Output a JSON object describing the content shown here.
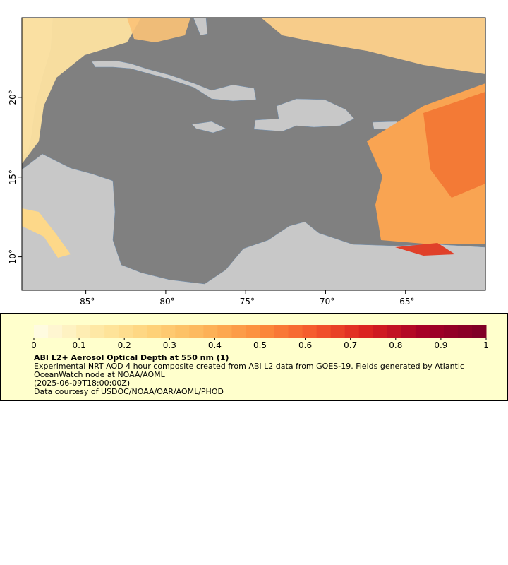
{
  "map": {
    "xlim": [
      -89,
      -60
    ],
    "ylim": [
      7.9,
      25
    ],
    "xticks": [
      {
        "value": -85,
        "label": "-85°"
      },
      {
        "value": -80,
        "label": "-80°"
      },
      {
        "value": -75,
        "label": "-75°"
      },
      {
        "value": -70,
        "label": "-70°"
      },
      {
        "value": -65,
        "label": "-65°"
      }
    ],
    "yticks": [
      {
        "value": 10,
        "label": "10°"
      },
      {
        "value": 15,
        "label": "15°"
      },
      {
        "value": 20,
        "label": "20°"
      }
    ]
  },
  "legend": {
    "colorbar": {
      "lim": [
        0,
        1
      ],
      "ticks": [
        0,
        0.1,
        0.2,
        0.3,
        0.4,
        0.5,
        0.6,
        0.7,
        0.8,
        0.9,
        1
      ],
      "colors": [
        "#fffbe0",
        "#fee9a6",
        "#fed37a",
        "#fdb55a",
        "#fc8d3c",
        "#f4582c",
        "#d92020",
        "#a50026",
        "#800026"
      ]
    },
    "title": "ABI L2+ Aerosol Optical Depth at 550 nm (1)",
    "description": "Experimental NRT AOD 4 hour composite created from ABI L2 data from GOES-19. Fields generated by Atlantic OceanWatch node at NOAA/AOML",
    "time": "(2025-06-09T18:00:00Z)",
    "credit": "Data courtesy of USDOC/NOAA/OAR/AOML/PHOD"
  }
}
